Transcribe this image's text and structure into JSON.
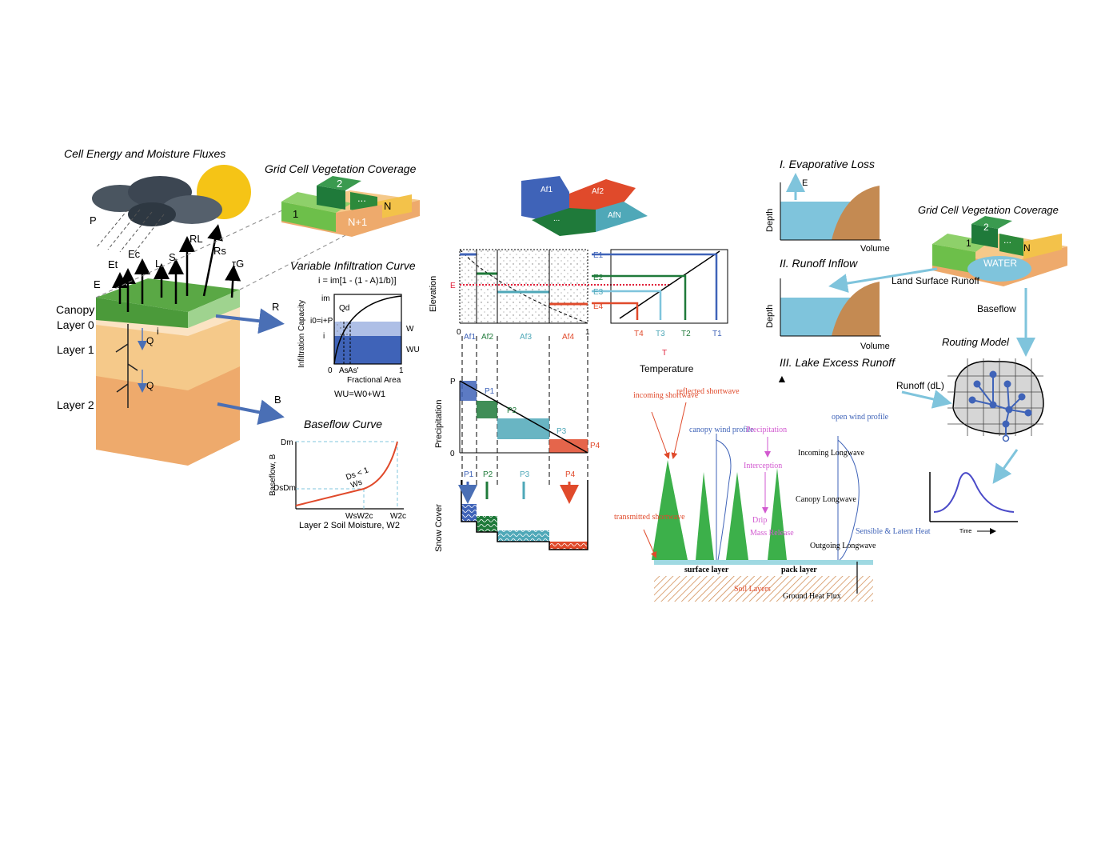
{
  "left": {
    "title": "Cell Energy and Moisture Fluxes",
    "veg_title": "Grid Cell Vegetation Coverage",
    "flux_labels": [
      "P",
      "Et",
      "Ec",
      "L",
      "S",
      "RL",
      "Rs",
      "τG",
      "E"
    ],
    "layers": [
      "Canopy",
      "Layer 0",
      "Layer 1",
      "Layer 2"
    ],
    "soil_symbols": [
      "i",
      "Q",
      "Q"
    ],
    "veg_tiles": [
      "1",
      "2",
      "...",
      "N",
      "N+1"
    ],
    "arrow_labels": [
      "R",
      "B"
    ]
  },
  "infiltration": {
    "title": "Variable Infiltration Curve",
    "equation": "i = im[1 - (1 - A)1/b)]",
    "ylabel": "Infiltration Capacity",
    "xlabel": "Fractional Area",
    "labels": [
      "im",
      "Qd",
      "i0=i+P",
      "i",
      "0",
      "As",
      "As'",
      "1",
      "W",
      "WU"
    ],
    "footer": "WU=W0+W1"
  },
  "baseflow": {
    "title": "Baseflow Curve",
    "ylabel": "Baseflow, B",
    "xlabel": "Layer 2 Soil Moisture, W2",
    "labels": [
      "Dm",
      "DsDm",
      "Ds < 1",
      "Ws",
      "WsW2c",
      "W2c"
    ]
  },
  "elevation": {
    "patch_labels": [
      "Af1",
      "Af2",
      "...",
      "AfN"
    ],
    "ylabel": "Elevation",
    "band_labels": [
      "Af1",
      "Af2",
      "Af3",
      "Af4"
    ],
    "e_labels": [
      "E1",
      "E2",
      "E3",
      "E4",
      "E"
    ],
    "t_labels": [
      "T4",
      "T3",
      "T2",
      "T1",
      "T"
    ],
    "xlabel": "Temperature",
    "axis": [
      "0",
      "1"
    ]
  },
  "precip": {
    "ylabel": "Precipitation",
    "labels": [
      "P",
      "P1",
      "P2",
      "P3",
      "P4",
      "0"
    ]
  },
  "snow": {
    "ylabel": "Snow Cover",
    "labels": [
      "P1",
      "P2",
      "P3",
      "P4"
    ]
  },
  "snowmodel": {
    "labels": [
      "incoming shortwave",
      "reflected shortwave",
      "canopy wind profile",
      "Precipitation",
      "open wind profile",
      "Interception",
      "Incoming Longwave",
      "Canopy Longwave",
      "transmitted shortwave",
      "Drip",
      "Mass Release",
      "Outgoing Longwave",
      "Sensible & Latent Heat",
      "surface layer",
      "pack layer",
      "Soil Layers",
      "Ground Heat Flux"
    ]
  },
  "lake": {
    "titles": [
      "I. Evaporative Loss",
      "II. Runoff Inflow",
      "III. Lake Excess Runoff"
    ],
    "axis": [
      "Depth",
      "Volume",
      "E"
    ],
    "veg_title": "Grid Cell Vegetation Coverage",
    "veg_tiles": [
      "1",
      "2",
      "...",
      "N",
      "WATER"
    ],
    "flows": [
      "Land Surface Runoff",
      "Baseflow",
      "Routing Model",
      "Runoff (dL)"
    ],
    "hydrograph_x": "Time"
  },
  "colors": {
    "blue": "#4a6fb5",
    "green": "#1f7a3a",
    "teal": "#4fa8b8",
    "red": "#e04a2b",
    "canopy": "#5aa845",
    "soil1": "#f5d9a3",
    "soil2": "#eeaa6c",
    "lightblue": "#7fc4dc",
    "pink": "#d25ad0"
  }
}
